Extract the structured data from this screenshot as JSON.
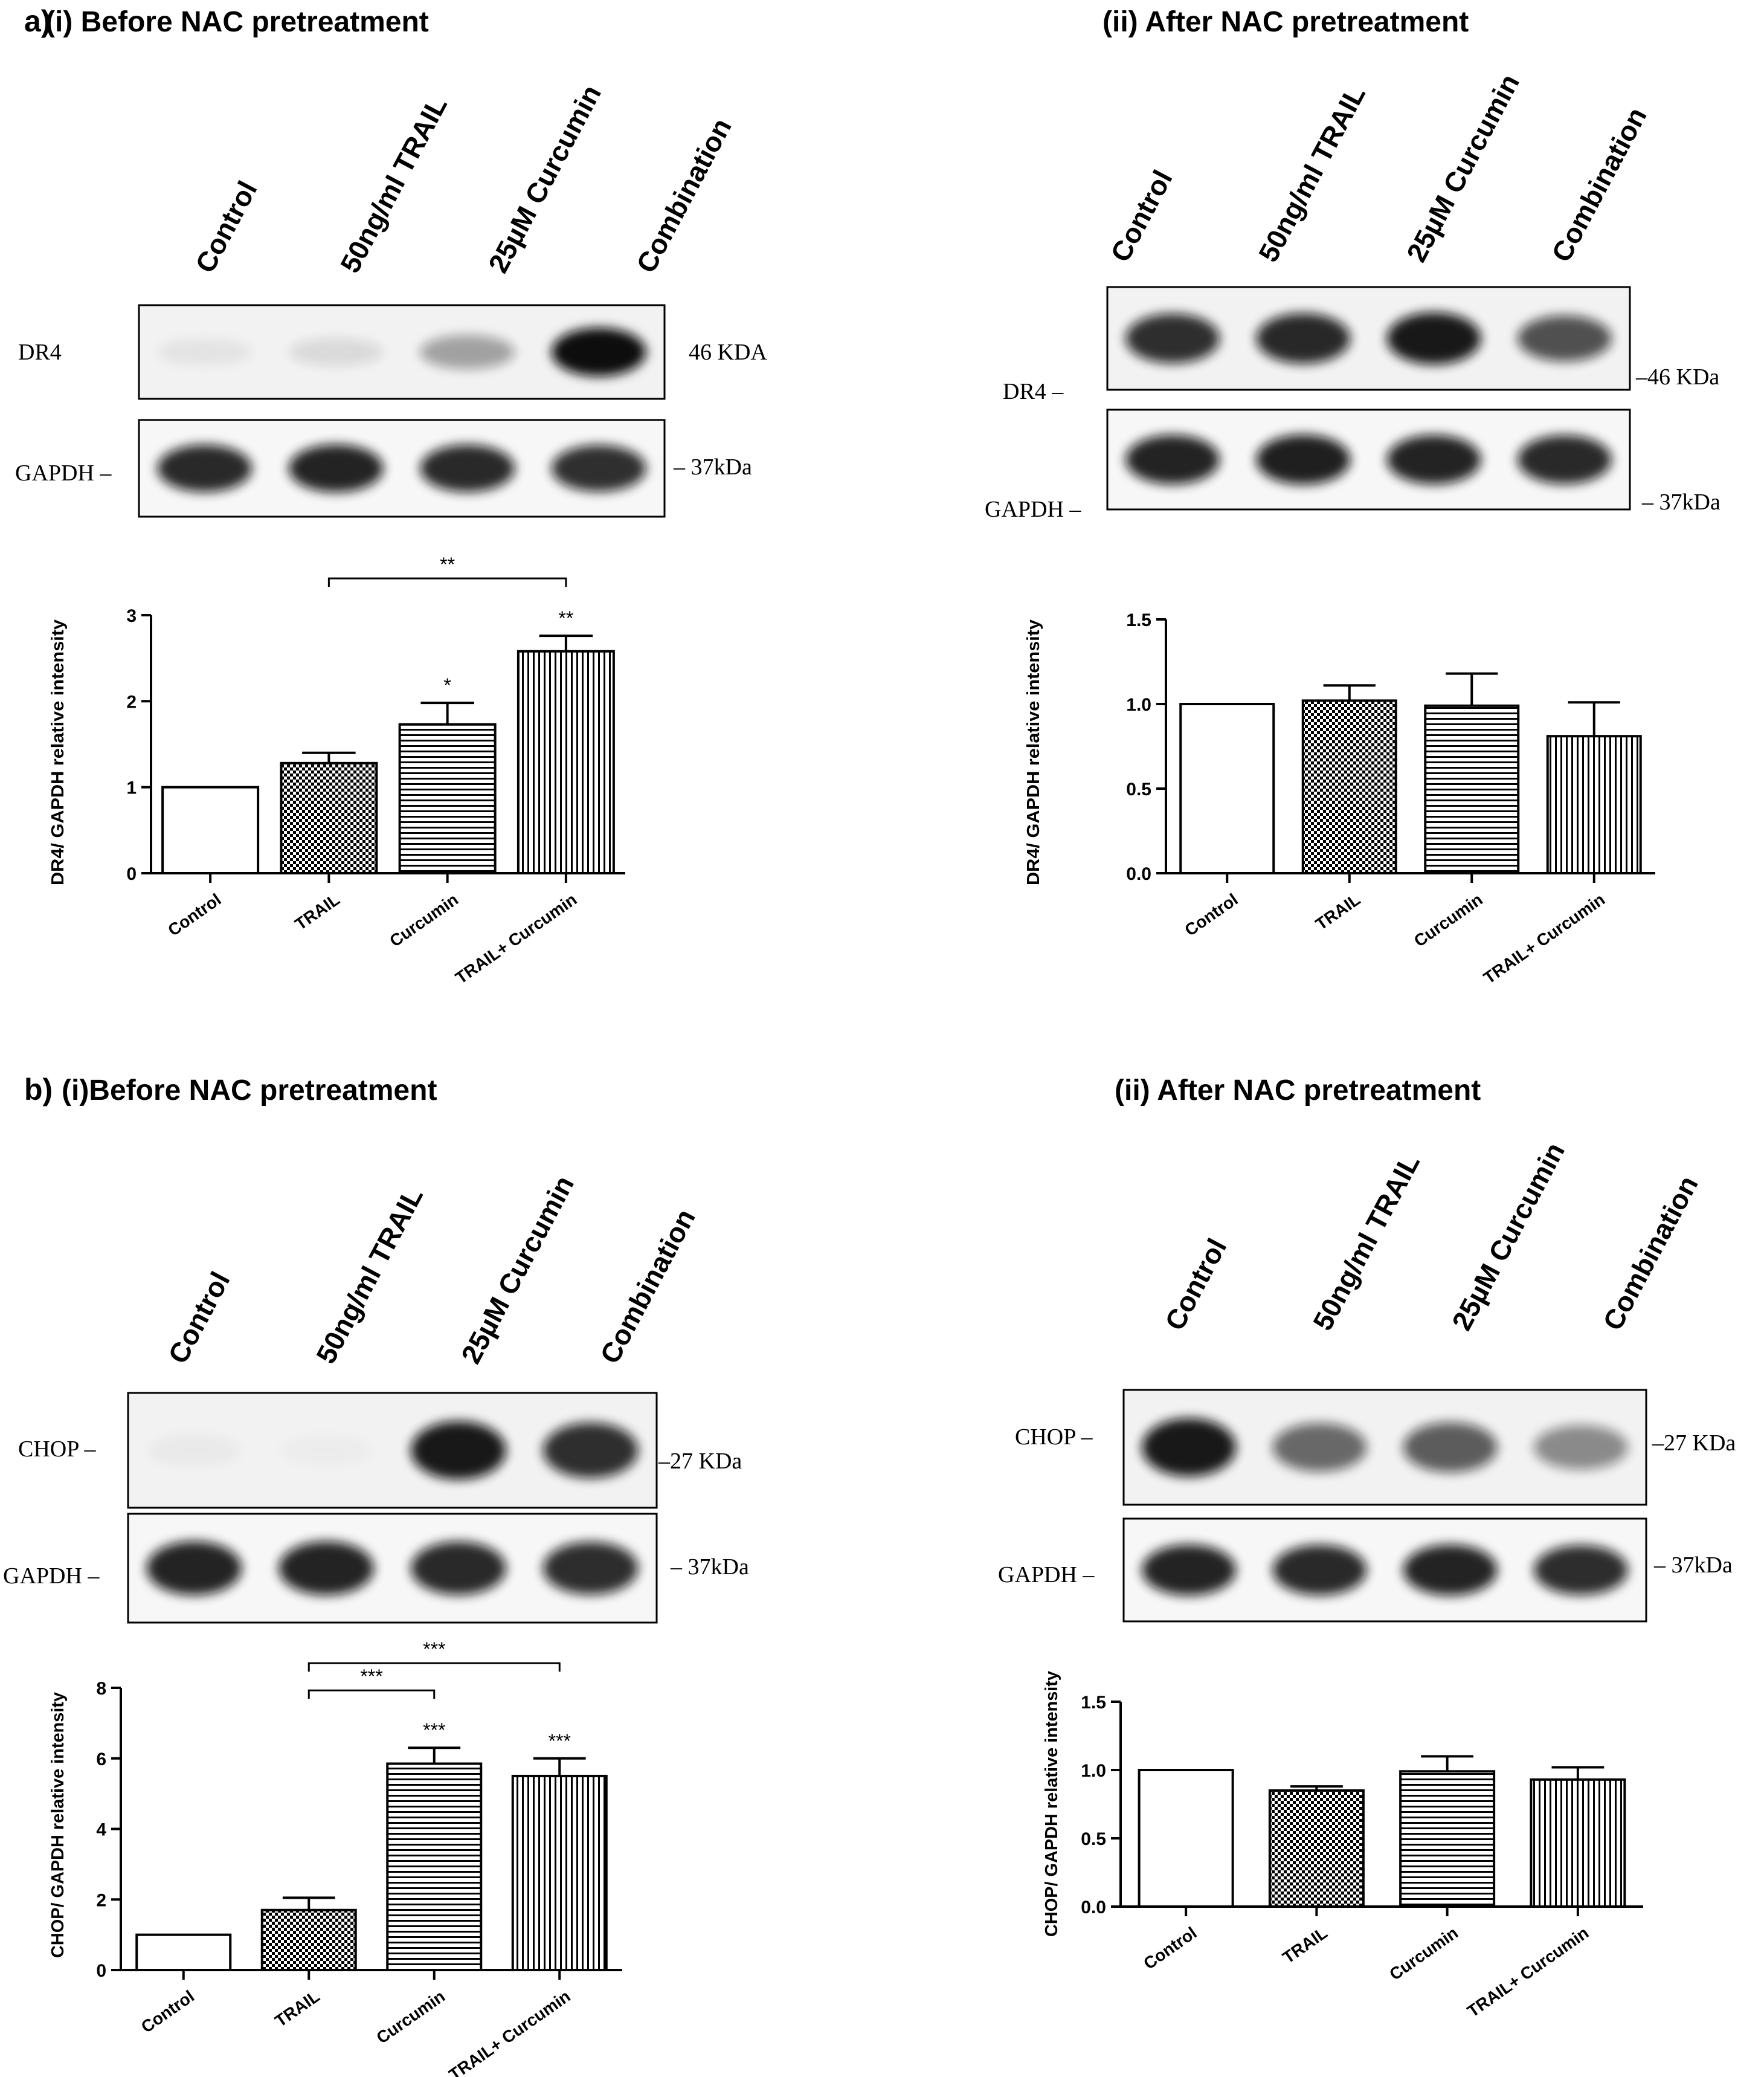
{
  "figure_labels": {
    "a": "a)",
    "b": "b)"
  },
  "lanes": [
    "Control",
    "50ng/ml TRAIL",
    "25µM Curcumin",
    "Combination"
  ],
  "colors": {
    "band": "#111111",
    "background": "#ffffff",
    "ink": "#000000"
  },
  "panels": [
    {
      "id": "a-i",
      "title": "(i) Before NAC pretreatment",
      "target_label": "DR4",
      "target_kda": "46 KDA",
      "gapdh_label": "GAPDH –",
      "gapdh_kda": "– 37kDa",
      "target_band_intensity": [
        0.06,
        0.1,
        0.35,
        1.0
      ],
      "gapdh_band_intensity": [
        0.88,
        0.9,
        0.88,
        0.85
      ]
    },
    {
      "id": "a-ii",
      "title": "(ii) After NAC pretreatment",
      "target_label": "DR4 –",
      "target_kda": "–46 KDa",
      "gapdh_label": "GAPDH –",
      "gapdh_kda": "– 37kDa",
      "target_band_intensity": [
        0.85,
        0.88,
        0.95,
        0.7
      ],
      "gapdh_band_intensity": [
        0.9,
        0.92,
        0.9,
        0.88
      ]
    },
    {
      "id": "b-i",
      "title": "(i)Before NAC pretreatment",
      "target_label": "CHOP –",
      "target_kda": "–27 KDa",
      "gapdh_label": "GAPDH –",
      "gapdh_kda": "– 37kDa",
      "target_band_intensity": [
        0.03,
        0.02,
        0.95,
        0.85
      ],
      "gapdh_band_intensity": [
        0.9,
        0.9,
        0.88,
        0.86
      ]
    },
    {
      "id": "b-ii",
      "title": "(ii)  After NAC pretreatment",
      "target_label": "CHOP –",
      "target_kda": "–27 KDa",
      "gapdh_label": "GAPDH –",
      "gapdh_kda": "– 37kDa",
      "target_band_intensity": [
        0.95,
        0.6,
        0.65,
        0.45
      ],
      "gapdh_band_intensity": [
        0.9,
        0.88,
        0.9,
        0.86
      ]
    }
  ],
  "chart_data": [
    {
      "id": "a-i",
      "type": "bar",
      "categories": [
        "Control",
        "TRAIL",
        "Curcumin",
        "TRAIL+ Curcumin"
      ],
      "values": [
        1.0,
        1.28,
        1.73,
        2.58
      ],
      "errors": [
        0,
        0.12,
        0.25,
        0.18
      ],
      "patterns": [
        "open",
        "checker",
        "horizontal",
        "vertical"
      ],
      "ylabel": "DR4/ GAPDH relative intensity",
      "ylim": [
        0,
        3
      ],
      "yticks": [
        "0",
        "1",
        "2",
        "3"
      ],
      "bar_stars": [
        "",
        "",
        "*",
        "**"
      ],
      "brackets": [
        {
          "from": 1,
          "to": 3,
          "label": "**"
        }
      ]
    },
    {
      "id": "a-ii",
      "type": "bar",
      "categories": [
        "Control",
        "TRAIL",
        "Curcumin",
        "TRAIL+ Curcumin"
      ],
      "values": [
        1.0,
        1.02,
        0.99,
        0.81
      ],
      "errors": [
        0,
        0.09,
        0.19,
        0.2
      ],
      "patterns": [
        "open",
        "checker",
        "horizontal",
        "vertical"
      ],
      "ylabel": "DR4/ GAPDH relative intensity",
      "ylim": [
        0,
        1.5
      ],
      "yticks": [
        "0.0",
        "0.5",
        "1.0",
        "1.5"
      ],
      "bar_stars": [
        "",
        "",
        "",
        ""
      ],
      "brackets": []
    },
    {
      "id": "b-i",
      "type": "bar",
      "categories": [
        "Control",
        "TRAIL",
        "Curcumin",
        "TRAIL+ Curcumin"
      ],
      "values": [
        1.0,
        1.7,
        5.85,
        5.5
      ],
      "errors": [
        0,
        0.35,
        0.45,
        0.5
      ],
      "patterns": [
        "open",
        "checker",
        "horizontal",
        "vertical"
      ],
      "ylabel": "CHOP/ GAPDH relative intensity",
      "ylim": [
        0,
        8
      ],
      "yticks": [
        "0",
        "2",
        "4",
        "6",
        "8"
      ],
      "bar_stars": [
        "",
        "",
        "***",
        "***"
      ],
      "brackets": [
        {
          "from": 1,
          "to": 2,
          "label": "***"
        },
        {
          "from": 1,
          "to": 3,
          "label": "***"
        }
      ]
    },
    {
      "id": "b-ii",
      "type": "bar",
      "categories": [
        "Control",
        "TRAIL",
        "Curcumin",
        "TRAIL+ Curcumin"
      ],
      "values": [
        1.0,
        0.85,
        0.99,
        0.93
      ],
      "errors": [
        0,
        0.03,
        0.11,
        0.09
      ],
      "patterns": [
        "open",
        "checker",
        "horizontal",
        "vertical"
      ],
      "ylabel": "CHOP/ GAPDH relative intensity",
      "ylim": [
        0,
        1.5
      ],
      "yticks": [
        "0.0",
        "0.5",
        "1.0",
        "1.5"
      ],
      "bar_stars": [
        "",
        "",
        "",
        ""
      ],
      "brackets": []
    }
  ]
}
